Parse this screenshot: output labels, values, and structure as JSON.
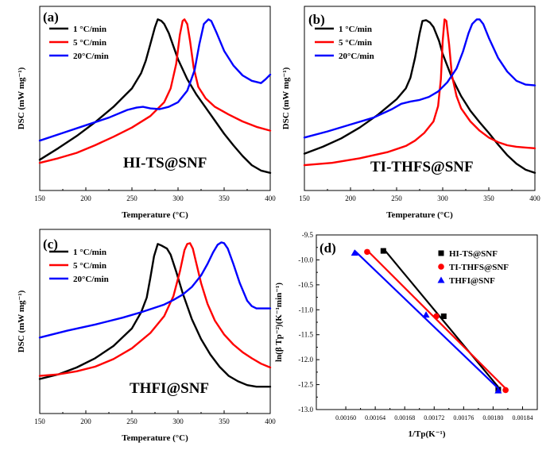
{
  "chart_data": [
    {
      "id": "a",
      "type": "line",
      "panel_label": "(a)",
      "sample_label": "HI-TS@SNF",
      "xlabel": "Temperature (°C)",
      "ylabel": "DSC (mW mg⁻¹)",
      "xlim": [
        150,
        400
      ],
      "xticks": [
        150,
        200,
        250,
        300,
        350,
        400
      ],
      "legend_position": "top-left",
      "series": [
        {
          "name": "1  °C/min",
          "color": "#000000",
          "x": [
            150,
            170,
            190,
            210,
            230,
            250,
            260,
            265,
            270,
            275,
            278,
            282,
            285,
            290,
            295,
            300,
            310,
            320,
            330,
            340,
            350,
            360,
            370,
            380,
            390,
            400
          ],
          "y": [
            -0.95,
            -0.8,
            -0.64,
            -0.46,
            -0.26,
            -0.02,
            0.18,
            0.34,
            0.56,
            0.78,
            0.88,
            0.86,
            0.82,
            0.7,
            0.53,
            0.36,
            0.1,
            -0.1,
            -0.27,
            -0.44,
            -0.61,
            -0.76,
            -0.9,
            -1.02,
            -1.09,
            -1.12
          ]
        },
        {
          "name": "5  °C/min",
          "color": "#ff0000",
          "x": [
            150,
            170,
            190,
            210,
            230,
            250,
            270,
            285,
            292,
            298,
            302,
            305,
            307,
            310,
            313,
            317,
            322,
            330,
            340,
            355,
            370,
            385,
            400
          ],
          "y": [
            -0.99,
            -0.93,
            -0.86,
            -0.76,
            -0.65,
            -0.53,
            -0.38,
            -0.2,
            -0.02,
            0.3,
            0.68,
            0.86,
            0.88,
            0.82,
            0.6,
            0.25,
            0.0,
            -0.15,
            -0.26,
            -0.36,
            -0.45,
            -0.52,
            -0.57
          ]
        },
        {
          "name": "20°C/min",
          "color": "#0000ff",
          "x": [
            150,
            175,
            200,
            225,
            245,
            255,
            262,
            270,
            280,
            290,
            300,
            310,
            318,
            323,
            328,
            333,
            336,
            342,
            350,
            360,
            370,
            380,
            390,
            395,
            400
          ],
          "y": [
            -0.7,
            -0.6,
            -0.5,
            -0.4,
            -0.3,
            -0.27,
            -0.26,
            -0.28,
            -0.29,
            -0.26,
            -0.2,
            -0.05,
            0.22,
            0.55,
            0.82,
            0.88,
            0.86,
            0.7,
            0.47,
            0.28,
            0.15,
            0.08,
            0.05,
            0.1,
            0.16
          ]
        }
      ]
    },
    {
      "id": "b",
      "type": "line",
      "panel_label": "(b)",
      "sample_label": "TI-THFS@SNF",
      "xlabel": "Temperature (°C)",
      "ylabel": "DSC (mW mg⁻¹)",
      "xlim": [
        150,
        400
      ],
      "xticks": [
        150,
        200,
        250,
        300,
        350,
        400
      ],
      "legend_position": "top-left",
      "series": [
        {
          "name": "1  °C/min",
          "color": "#000000",
          "x": [
            150,
            170,
            190,
            210,
            230,
            250,
            260,
            265,
            270,
            275,
            278,
            282,
            286,
            290,
            296,
            300,
            310,
            320,
            330,
            340,
            350,
            360,
            370,
            380,
            390,
            400
          ],
          "y": [
            -0.87,
            -0.78,
            -0.67,
            -0.53,
            -0.36,
            -0.16,
            -0.02,
            0.12,
            0.38,
            0.7,
            0.86,
            0.87,
            0.84,
            0.78,
            0.6,
            0.43,
            0.12,
            -0.12,
            -0.31,
            -0.46,
            -0.6,
            -0.75,
            -0.89,
            -1.0,
            -1.08,
            -1.12
          ]
        },
        {
          "name": "5  °C/min",
          "color": "#ff0000",
          "x": [
            150,
            180,
            210,
            240,
            260,
            270,
            280,
            290,
            295,
            298,
            300,
            302,
            304,
            307,
            310,
            315,
            320,
            330,
            340,
            350,
            360,
            370,
            380,
            390,
            400
          ],
          "y": [
            -1.02,
            -0.99,
            -0.93,
            -0.85,
            -0.77,
            -0.7,
            -0.6,
            -0.45,
            -0.25,
            0.1,
            0.6,
            0.88,
            0.86,
            0.55,
            0.15,
            -0.12,
            -0.28,
            -0.45,
            -0.57,
            -0.66,
            -0.72,
            -0.76,
            -0.78,
            -0.79,
            -0.8
          ]
        },
        {
          "name": "20°C/min",
          "color": "#0000ff",
          "x": [
            150,
            175,
            200,
            225,
            245,
            255,
            265,
            275,
            285,
            295,
            305,
            315,
            322,
            328,
            332,
            337,
            340,
            344,
            350,
            360,
            370,
            380,
            390,
            400
          ],
          "y": [
            -0.66,
            -0.58,
            -0.49,
            -0.4,
            -0.29,
            -0.22,
            -0.19,
            -0.17,
            -0.13,
            -0.06,
            0.06,
            0.24,
            0.46,
            0.7,
            0.82,
            0.88,
            0.88,
            0.82,
            0.64,
            0.38,
            0.2,
            0.08,
            0.03,
            0.02
          ]
        }
      ]
    },
    {
      "id": "c",
      "type": "line",
      "panel_label": "(c)",
      "sample_label": "THFI@SNF",
      "xlabel": "Temperature (°C)",
      "ylabel": "DSC (mW mg⁻¹)",
      "xlim": [
        150,
        400
      ],
      "xticks": [
        150,
        200,
        250,
        300,
        350,
        400
      ],
      "legend_position": "top-left",
      "series": [
        {
          "name": "1  °C/min",
          "color": "#000000",
          "x": [
            150,
            170,
            190,
            210,
            230,
            250,
            260,
            266,
            270,
            274,
            278,
            282,
            288,
            292,
            298,
            305,
            315,
            325,
            335,
            345,
            355,
            365,
            375,
            385,
            400
          ],
          "y": [
            -0.9,
            -0.84,
            -0.75,
            -0.63,
            -0.47,
            -0.24,
            -0.03,
            0.16,
            0.42,
            0.7,
            0.86,
            0.84,
            0.8,
            0.72,
            0.5,
            0.22,
            -0.12,
            -0.38,
            -0.58,
            -0.74,
            -0.86,
            -0.93,
            -0.98,
            -1.0,
            -1.0
          ]
        },
        {
          "name": "5  °C/min",
          "color": "#ff0000",
          "x": [
            150,
            170,
            190,
            210,
            230,
            250,
            270,
            285,
            295,
            302,
            307,
            310,
            313,
            316,
            320,
            325,
            332,
            340,
            350,
            360,
            370,
            380,
            390,
            400
          ],
          "y": [
            -0.86,
            -0.84,
            -0.8,
            -0.74,
            -0.64,
            -0.5,
            -0.3,
            -0.08,
            0.18,
            0.5,
            0.78,
            0.86,
            0.87,
            0.8,
            0.6,
            0.35,
            0.08,
            -0.14,
            -0.32,
            -0.45,
            -0.55,
            -0.63,
            -0.7,
            -0.75
          ]
        },
        {
          "name": "20°C/min",
          "color": "#0000ff",
          "x": [
            150,
            180,
            210,
            240,
            260,
            275,
            285,
            295,
            305,
            315,
            325,
            332,
            338,
            343,
            347,
            350,
            354,
            360,
            367,
            375,
            380,
            385,
            390,
            400
          ],
          "y": [
            -0.36,
            -0.27,
            -0.19,
            -0.1,
            -0.03,
            0.03,
            0.07,
            0.13,
            0.2,
            0.3,
            0.45,
            0.6,
            0.75,
            0.85,
            0.88,
            0.87,
            0.8,
            0.6,
            0.35,
            0.12,
            0.05,
            0.02,
            0.02,
            0.02
          ]
        }
      ]
    },
    {
      "id": "d",
      "type": "scatter",
      "panel_label": "(d)",
      "xlabel": "1/Tp(K⁻¹)",
      "ylabel": "ln(β Tp⁻²)(K⁻¹min⁻¹)",
      "xlim": [
        0.00156,
        0.00186
      ],
      "ylim": [
        -13.0,
        -9.5
      ],
      "xticks": [
        0.0016,
        0.00164,
        0.00168,
        0.00172,
        0.00176,
        0.0018,
        0.00184
      ],
      "xtick_labels": [
        "0.00160",
        "0.00164",
        "0.00168",
        "0.00172",
        "0.00176",
        "0.00180",
        "0.00184"
      ],
      "yticks": [
        -13.0,
        -12.5,
        -12.0,
        -11.5,
        -11.0,
        -10.5,
        -10.0,
        -9.5
      ],
      "ytick_labels": [
        "-13.0",
        "-12.5",
        "-12.0",
        "-11.5",
        "-11.0",
        "-10.5",
        "-10.0",
        "-9.5"
      ],
      "legend_position": "top-right",
      "series": [
        {
          "name": "HI-TS@SNF",
          "color": "#000000",
          "marker": "square",
          "x": [
            0.001651,
            0.001733,
            0.001807
          ],
          "y": [
            -9.82,
            -11.13,
            -12.6
          ]
        },
        {
          "name": "TI-THFS@SNF",
          "color": "#ff0000",
          "marker": "circle",
          "x": [
            0.001629,
            0.001723,
            0.001817
          ],
          "y": [
            -9.84,
            -11.13,
            -12.61
          ]
        },
        {
          "name": "THFI@SNF",
          "color": "#0000ff",
          "marker": "triangle",
          "x": [
            0.001612,
            0.001709,
            0.001807
          ],
          "y": [
            -9.86,
            -11.1,
            -12.62
          ]
        }
      ]
    }
  ]
}
